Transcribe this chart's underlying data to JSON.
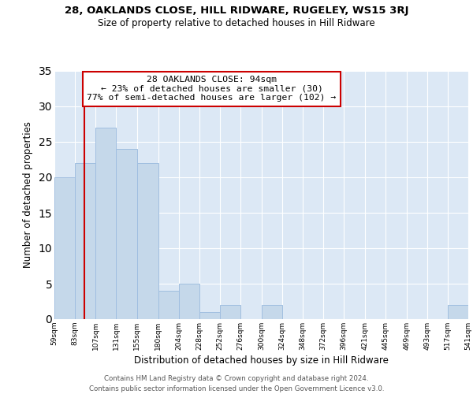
{
  "title1": "28, OAKLANDS CLOSE, HILL RIDWARE, RUGELEY, WS15 3RJ",
  "title2": "Size of property relative to detached houses in Hill Ridware",
  "xlabel": "Distribution of detached houses by size in Hill Ridware",
  "ylabel": "Number of detached properties",
  "annotation_title": "28 OAKLANDS CLOSE: 94sqm",
  "annotation_line1": "← 23% of detached houses are smaller (30)",
  "annotation_line2": "77% of semi-detached houses are larger (102) →",
  "property_size_sqm": 94,
  "bar_edges": [
    59,
    83,
    107,
    131,
    155,
    180,
    204,
    228,
    252,
    276,
    300,
    324,
    348,
    372,
    396,
    421,
    445,
    469,
    493,
    517,
    541
  ],
  "bar_heights": [
    20,
    22,
    27,
    24,
    22,
    4,
    5,
    1,
    2,
    0,
    2,
    0,
    0,
    0,
    0,
    0,
    0,
    0,
    0,
    2
  ],
  "bar_color": "#c5d8ea",
  "bar_edgecolor": "#a0bee0",
  "vline_color": "#cc0000",
  "annotation_edgecolor": "#cc0000",
  "bg_color": "#dce8f5",
  "grid_color": "#ffffff",
  "ylim_max": 35,
  "footer1": "Contains HM Land Registry data © Crown copyright and database right 2024.",
  "footer2": "Contains public sector information licensed under the Open Government Licence v3.0."
}
